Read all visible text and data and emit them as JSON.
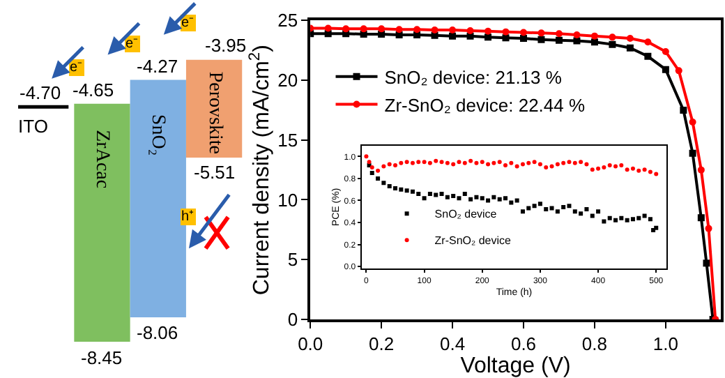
{
  "chart_data": [
    {
      "type": "other",
      "categories": [
        "ITO",
        "ZrAcac",
        "SnO₂",
        "Perovskite"
      ],
      "colors": [
        "#000000",
        "#7fbf5f",
        "#7fb0e2",
        "#f0a070"
      ],
      "annotations": [
        "-4.70",
        "-4.65",
        "-8.45",
        "-4.27",
        "-8.06",
        "-3.95",
        "-5.51",
        "e⁻",
        "e⁻",
        "e⁻",
        "h⁺"
      ]
    },
    {
      "type": "line",
      "xlabel": "Voltage (V)",
      "ylabel": "Current density (mA/cm$^{2}$)",
      "xlim": [
        0,
        1.155
      ],
      "ylim": [
        0,
        25
      ],
      "xticks": [
        {
          "value": 0,
          "label": "0.0"
        },
        {
          "value": 0.2,
          "label": "0.2"
        },
        {
          "value": 0.4,
          "label": "0.4"
        },
        {
          "value": 0.6,
          "label": "0.6"
        },
        {
          "value": 0.8,
          "label": "0.8"
        },
        {
          "value": 1.0,
          "label": "1.0"
        }
      ],
      "yticks": [
        0,
        5,
        10,
        15,
        20,
        25
      ],
      "legend": "top left",
      "series": [
        {
          "name": "SnO₂ device: 21.13 %",
          "color": "#000000",
          "marker": "square",
          "x": [
            0,
            0.05,
            0.1,
            0.15,
            0.2,
            0.25,
            0.3,
            0.35,
            0.4,
            0.45,
            0.5,
            0.55,
            0.6,
            0.65,
            0.7,
            0.75,
            0.8,
            0.85,
            0.9,
            0.95,
            1.0,
            1.05,
            1.076,
            1.1,
            1.115,
            1.133
          ],
          "values": [
            23.9,
            23.9,
            23.9,
            23.85,
            23.85,
            23.8,
            23.8,
            23.75,
            23.7,
            23.7,
            23.6,
            23.55,
            23.5,
            23.4,
            23.35,
            23.3,
            23.2,
            23.0,
            22.7,
            22.0,
            20.9,
            17.5,
            13.9,
            8.5,
            4.7,
            0
          ]
        },
        {
          "name": "Zr-SnO₂ device: 22.44 %",
          "color": "#ff0000",
          "marker": "circle",
          "x": [
            0,
            0.05,
            0.1,
            0.15,
            0.2,
            0.25,
            0.3,
            0.35,
            0.4,
            0.45,
            0.5,
            0.55,
            0.6,
            0.65,
            0.7,
            0.75,
            0.8,
            0.85,
            0.9,
            0.95,
            1.0,
            1.037,
            1.076,
            1.1,
            1.121,
            1.14
          ],
          "values": [
            24.35,
            24.35,
            24.3,
            24.3,
            24.3,
            24.25,
            24.25,
            24.2,
            24.2,
            24.15,
            24.1,
            24.05,
            24.0,
            23.95,
            23.9,
            23.8,
            23.7,
            23.6,
            23.5,
            23.2,
            22.4,
            20.8,
            16.5,
            12.5,
            7.6,
            0
          ]
        }
      ]
    },
    {
      "type": "scatter",
      "xlabel": "Time (h)",
      "ylabel": "PCE (%)",
      "xlim": [
        -8,
        518
      ],
      "ylim": [
        -0.02,
        1.1
      ],
      "xticks": [
        0,
        100,
        200,
        300,
        400,
        500
      ],
      "yticks": [
        {
          "value": 0,
          "label": "0.0"
        },
        {
          "value": 0.2,
          "label": "0.2"
        },
        {
          "value": 0.4,
          "label": "0.4"
        },
        {
          "value": 0.6,
          "label": "0.6"
        },
        {
          "value": 0.8,
          "label": "0.8"
        },
        {
          "value": 1.0,
          "label": "1.0"
        }
      ],
      "legend": "bottom left",
      "series": [
        {
          "name": "SnO₂ device",
          "color": "#000000",
          "marker": "square",
          "x": [
            5,
            10,
            20,
            30,
            40,
            50,
            60,
            70,
            80,
            90,
            100,
            110,
            120,
            130,
            140,
            150,
            160,
            170,
            180,
            190,
            200,
            210,
            220,
            230,
            240,
            250,
            260,
            270,
            280,
            290,
            300,
            310,
            320,
            330,
            340,
            350,
            360,
            370,
            380,
            390,
            400,
            410,
            420,
            430,
            440,
            450,
            460,
            470,
            480,
            490,
            495,
            500
          ],
          "values": [
            0.92,
            0.85,
            0.8,
            0.76,
            0.73,
            0.71,
            0.7,
            0.69,
            0.68,
            0.66,
            0.62,
            0.66,
            0.65,
            0.66,
            0.63,
            0.64,
            0.62,
            0.66,
            0.61,
            0.63,
            0.62,
            0.6,
            0.63,
            0.61,
            0.62,
            0.58,
            0.6,
            0.5,
            0.53,
            0.55,
            0.57,
            0.52,
            0.53,
            0.5,
            0.54,
            0.55,
            0.5,
            0.48,
            0.52,
            0.46,
            0.5,
            0.41,
            0.44,
            0.42,
            0.44,
            0.42,
            0.43,
            0.44,
            0.46,
            0.43,
            0.33,
            0.35
          ]
        },
        {
          "name": "Zr-SnO₂ device",
          "color": "#ff0000",
          "marker": "circle",
          "x": [
            0,
            5,
            10,
            20,
            30,
            40,
            50,
            60,
            70,
            80,
            90,
            100,
            110,
            120,
            130,
            140,
            150,
            160,
            170,
            180,
            190,
            200,
            210,
            220,
            230,
            240,
            250,
            260,
            270,
            280,
            290,
            300,
            310,
            320,
            330,
            340,
            350,
            360,
            370,
            380,
            390,
            400,
            410,
            420,
            430,
            440,
            450,
            460,
            470,
            480,
            490,
            500
          ],
          "values": [
            1.0,
            0.95,
            0.9,
            0.87,
            0.91,
            0.93,
            0.92,
            0.94,
            0.95,
            0.94,
            0.95,
            0.95,
            0.94,
            0.96,
            0.95,
            0.94,
            0.93,
            0.95,
            0.94,
            0.96,
            0.94,
            0.95,
            0.93,
            0.94,
            0.95,
            0.92,
            0.94,
            0.91,
            0.93,
            0.94,
            0.95,
            0.93,
            0.9,
            0.91,
            0.93,
            0.94,
            0.95,
            0.94,
            0.95,
            0.93,
            0.88,
            0.89,
            0.9,
            0.92,
            0.91,
            0.92,
            0.88,
            0.89,
            0.87,
            0.88,
            0.86,
            0.84
          ]
        }
      ]
    }
  ]
}
